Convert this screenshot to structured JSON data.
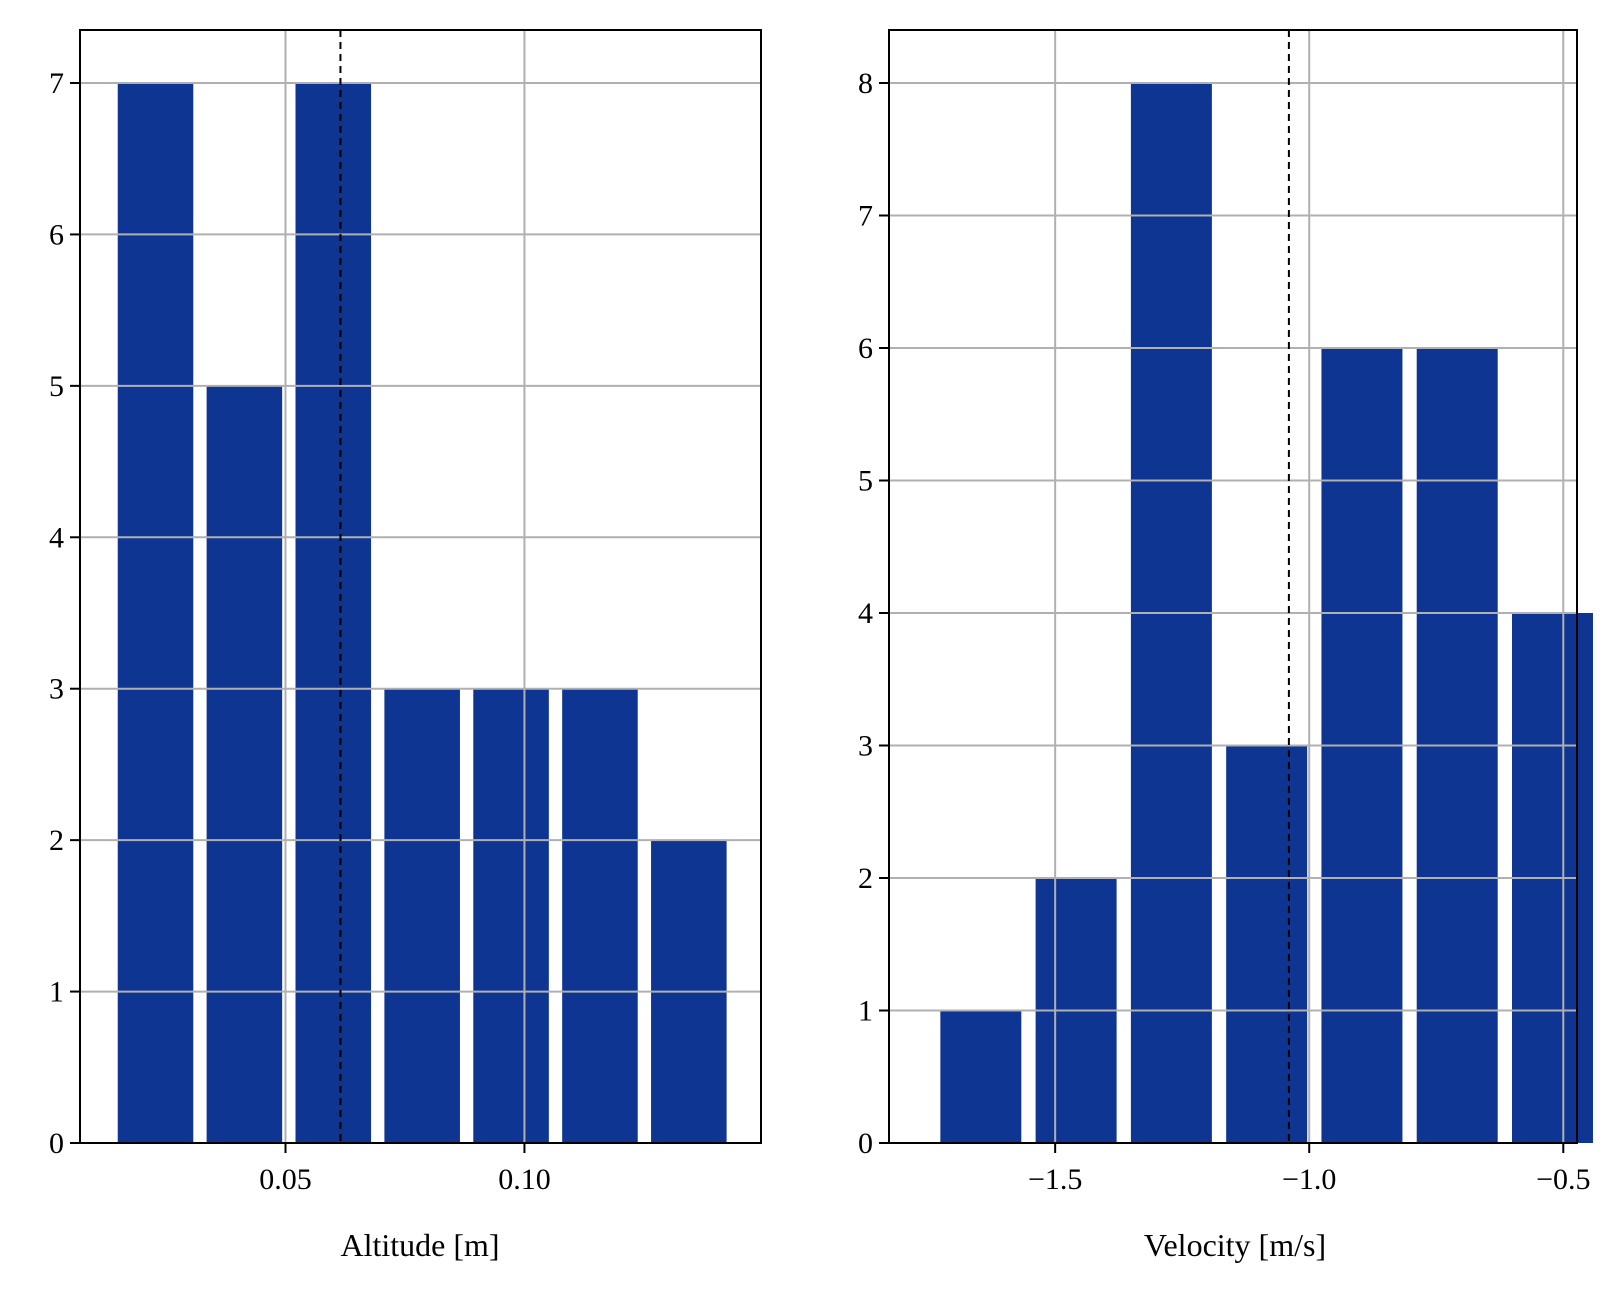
{
  "chart_data": [
    {
      "type": "bar",
      "xlabel": "Altitude [m]",
      "ylabel": "",
      "bins": [
        {
          "start": 0.0135,
          "end": 0.0321,
          "count": 7
        },
        {
          "start": 0.0321,
          "end": 0.0507,
          "count": 5
        },
        {
          "start": 0.0507,
          "end": 0.0693,
          "count": 7
        },
        {
          "start": 0.0693,
          "end": 0.0879,
          "count": 3
        },
        {
          "start": 0.0879,
          "end": 0.1065,
          "count": 3
        },
        {
          "start": 0.1065,
          "end": 0.1251,
          "count": 3
        },
        {
          "start": 0.1251,
          "end": 0.1437,
          "count": 2
        }
      ],
      "values": [
        7,
        5,
        7,
        3,
        3,
        3,
        2
      ],
      "mean_line": 0.0615,
      "xlim": [
        0.007,
        0.1495
      ],
      "ylim": [
        0,
        7.35
      ],
      "xticks": [
        0.05,
        0.1
      ],
      "xtick_labels": [
        "0.05",
        "0.10"
      ],
      "yticks": [
        0,
        1,
        2,
        3,
        4,
        5,
        6,
        7
      ],
      "ytick_labels": [
        "0",
        "1",
        "2",
        "3",
        "4",
        "5",
        "6",
        "7"
      ],
      "grid": true
    },
    {
      "type": "bar",
      "xlabel": "Velocity [m/s]",
      "ylabel": "",
      "bins": [
        {
          "start": -1.74,
          "end": -1.5525,
          "count": 1
        },
        {
          "start": -1.5525,
          "end": -1.365,
          "count": 2
        },
        {
          "start": -1.365,
          "end": -1.1775,
          "count": 8
        },
        {
          "start": -1.1775,
          "end": -0.99,
          "count": 3
        },
        {
          "start": -0.99,
          "end": -0.8025,
          "count": 6
        },
        {
          "start": -0.8025,
          "end": -0.615,
          "count": 6
        },
        {
          "start": -0.615,
          "end": -0.4275,
          "count": 4
        }
      ],
      "values": [
        1,
        2,
        8,
        3,
        6,
        6,
        4
      ],
      "mean_line": -1.04,
      "xlim": [
        -1.827,
        -0.473
      ],
      "ylim": [
        0,
        8.4
      ],
      "xticks": [
        -1.5,
        -1.0,
        -0.5
      ],
      "xtick_labels": [
        "−1.5",
        "−1.0",
        "−0.5"
      ],
      "yticks": [
        0,
        1,
        2,
        3,
        4,
        5,
        6,
        7,
        8
      ],
      "ytick_labels": [
        "0",
        "1",
        "2",
        "3",
        "4",
        "5",
        "6",
        "7",
        "8"
      ],
      "grid": true
    }
  ],
  "colors": {
    "bar": "#0d3591",
    "grid": "#b0b0b0",
    "axis": "#000000",
    "mean_line": "#000000"
  }
}
